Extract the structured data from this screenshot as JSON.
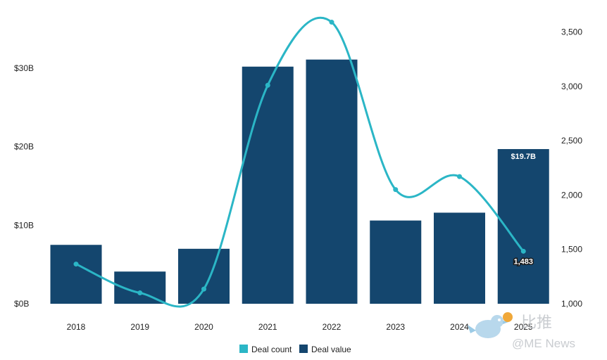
{
  "chart_data": {
    "type": "bar",
    "categories": [
      "2018",
      "2019",
      "2020",
      "2021",
      "2022",
      "2023",
      "2024",
      "2025"
    ],
    "series": [
      {
        "name": "Deal value",
        "chart_type": "bar",
        "axis": "left",
        "values": [
          7.5,
          4.1,
          7.0,
          30.2,
          31.1,
          10.6,
          11.6,
          19.7
        ],
        "color": "#14466e"
      },
      {
        "name": "Deal count",
        "chart_type": "line",
        "axis": "right",
        "values": [
          1365,
          1100,
          1135,
          3010,
          3590,
          2050,
          2170,
          1483
        ],
        "color": "#2bb6c6"
      }
    ],
    "left_axis": {
      "ylim": [
        0,
        36
      ],
      "ticks": [
        0,
        10,
        20,
        30
      ],
      "tick_labels": [
        "$0B",
        "$10B",
        "$20B",
        "$30B"
      ]
    },
    "right_axis": {
      "ylim": [
        1000,
        3600
      ],
      "ticks": [
        1000,
        1500,
        2000,
        2500,
        3000,
        3500
      ],
      "tick_labels": [
        "1,000",
        "1,500",
        "2,000",
        "2,500",
        "3,000",
        "3,500"
      ]
    },
    "data_labels": {
      "bar_2025": "$19.7B",
      "line_2025": "1,483"
    },
    "legend": {
      "position": "bottom-center",
      "items": [
        "Deal count",
        "Deal value"
      ]
    },
    "grid": false
  },
  "watermark": {
    "cn_text": "比推",
    "en_text": "@ME News"
  },
  "colors": {
    "bar": "#14466e",
    "line": "#2bb6c6",
    "background": "#ffffff"
  }
}
